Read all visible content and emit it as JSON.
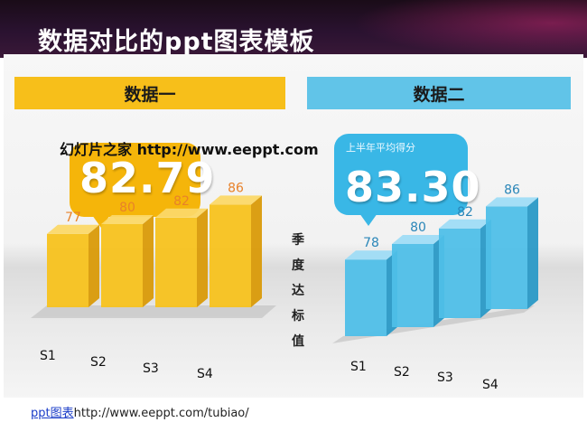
{
  "title": "数据对比的ppt图表模板",
  "overlay_url": "幻灯片之家 http://www.eeppt.com",
  "middle_label": "季度达标值",
  "footer": {
    "link_text": "ppt图表",
    "url": "http://www.eeppt.com/tubiao/"
  },
  "colors": {
    "yellow": "#f5b50a",
    "blue": "#39b7e6",
    "yellow_value": "#e8822a",
    "blue_value": "#2a86b8"
  },
  "chart_data": [
    {
      "type": "bar",
      "header": "数据一",
      "bubble_value": "82.79",
      "bubble_label": "",
      "categories": [
        "S1",
        "S2",
        "S3",
        "S4"
      ],
      "values": [
        77,
        80,
        82,
        86
      ],
      "ylim": [
        0,
        100
      ]
    },
    {
      "type": "bar",
      "header": "数据二",
      "bubble_value": "83.30",
      "bubble_label": "上半年平均得分",
      "categories": [
        "S1",
        "S2",
        "S3",
        "S4"
      ],
      "values": [
        78,
        80,
        82,
        86
      ],
      "ylim": [
        0,
        100
      ]
    }
  ]
}
